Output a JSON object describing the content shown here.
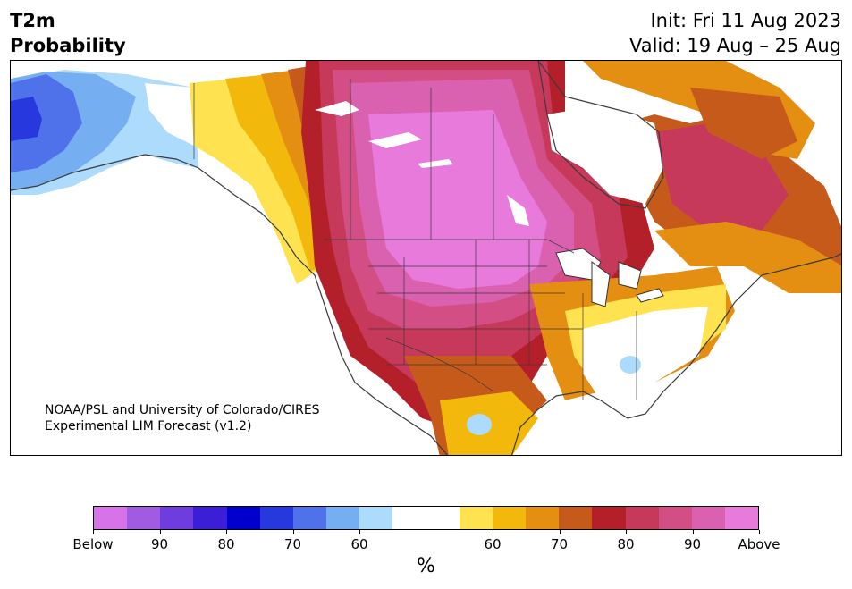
{
  "header": {
    "title_line1": "T2m",
    "title_line2": "Probability",
    "init": "Init: Fri 11 Aug 2023",
    "valid": "Valid: 19 Aug – 25 Aug"
  },
  "map": {
    "region": "North America",
    "credit_line1": "NOAA/PSL and University of Colorado/CIRES",
    "credit_line2": "Experimental LIM Forecast (v1.2)"
  },
  "colorbar": {
    "unit_label": "%",
    "colors": [
      "#d773e8",
      "#a15ae2",
      "#6f3ddd",
      "#3b1fd6",
      "#0000cc",
      "#2738dd",
      "#4f72ea",
      "#76aef2",
      "#acdbfb",
      "#ffffff",
      "#ffffff",
      "#ffe24f",
      "#f2b90c",
      "#e48e12",
      "#c65a1a",
      "#b3202a",
      "#c7395a",
      "#d24e84",
      "#da60b0",
      "#e87adc"
    ],
    "tick_labels": [
      "Below",
      "90",
      "80",
      "70",
      "60",
      "60",
      "70",
      "80",
      "90",
      "Above"
    ]
  }
}
